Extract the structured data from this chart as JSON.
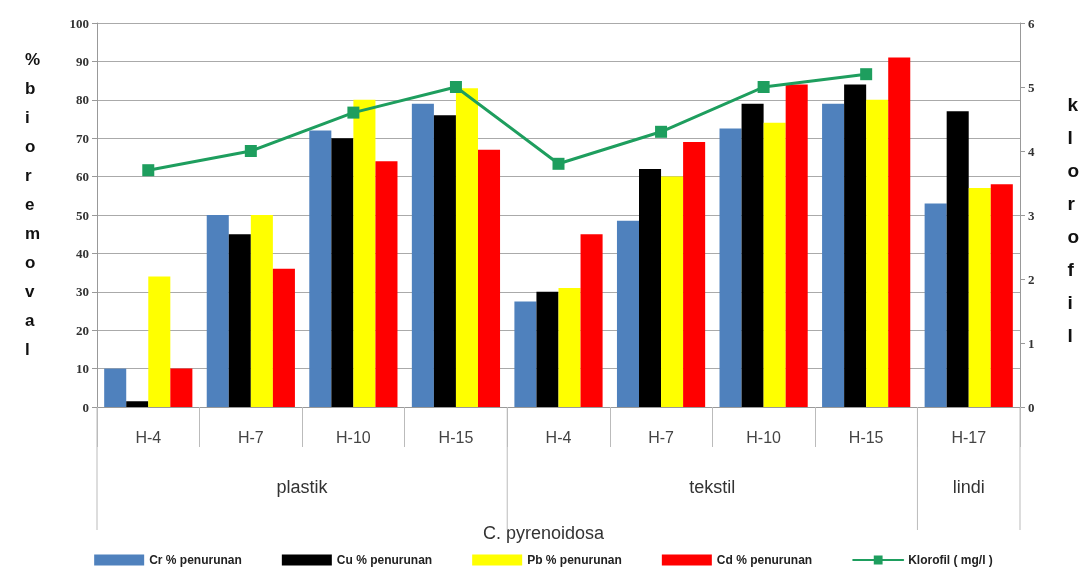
{
  "chart_data": {
    "type": "bar",
    "xlabel": "C. pyrenoidosa",
    "ylabel": "% bioremoval",
    "y2label": "klorofil",
    "categories": [
      "H-4",
      "H-7",
      "H-10",
      "H-15",
      "H-4",
      "H-7",
      "H-10",
      "H-15",
      "H-17"
    ],
    "annotations": [
      "plastik",
      "tekstil",
      "lindi"
    ],
    "series": [
      {
        "name": "Cr % penurunan",
        "color": "#4f81bd",
        "values": [
          10,
          50,
          72,
          79,
          27.5,
          48.5,
          72.5,
          79,
          53
        ]
      },
      {
        "name": "Cu % penurunan",
        "color": "#000000",
        "values": [
          1.5,
          45,
          70,
          76,
          30,
          62,
          79,
          84,
          77
        ]
      },
      {
        "name": "Pb % penurunan",
        "color": "#ffff00",
        "values": [
          34,
          50,
          80,
          83,
          31,
          60,
          74,
          80,
          57
        ]
      },
      {
        "name": "Cd % penurunan",
        "color": "#ff0000",
        "values": [
          10,
          36,
          64,
          67,
          45,
          69,
          84,
          91,
          58
        ]
      },
      {
        "name": "Klorofil ( mg/l )",
        "type": "line",
        "axis": "y2",
        "color": "#1e9e5e",
        "marker": "square",
        "line_style": "solid",
        "values": [
          3.7,
          4.0,
          4.6,
          5.0,
          3.8,
          4.3,
          5.0,
          5.2,
          null
        ]
      }
    ],
    "ylim": [
      0,
      100
    ],
    "yticks": [
      0,
      10,
      20,
      30,
      40,
      50,
      60,
      70,
      80,
      90,
      100
    ],
    "y2lim": [
      0,
      6
    ],
    "y2ticks": [
      0,
      1,
      2,
      3,
      4,
      5,
      6
    ],
    "grid": "y",
    "legend": "bottom"
  }
}
